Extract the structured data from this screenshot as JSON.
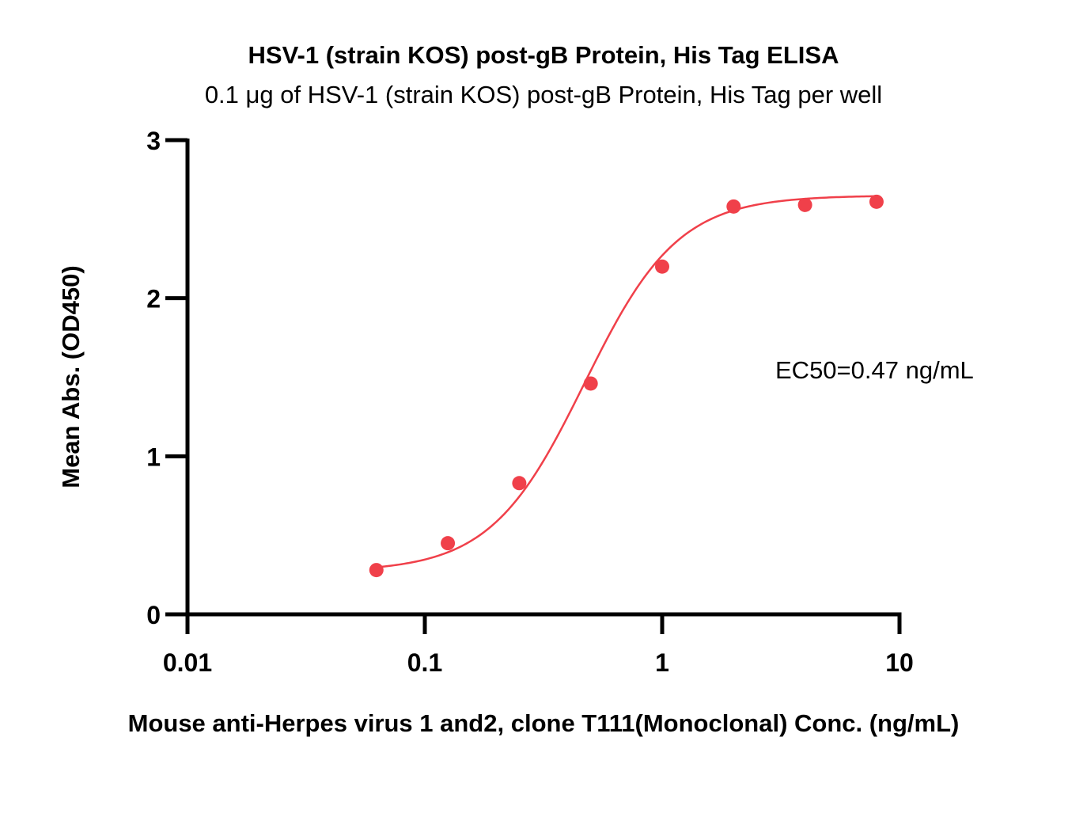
{
  "chart_data": {
    "type": "scatter",
    "title": "HSV-1 (strain KOS) post-gB Protein, His Tag ELISA",
    "subtitle": "0.1 μg of HSV-1 (strain KOS) post-gB Protein, His Tag per well",
    "xlabel": "Mouse anti-Herpes virus 1 and2, clone T111(Monoclonal) Conc. (ng/mL)",
    "ylabel": "Mean Abs. (OD450)",
    "x_scale": "log",
    "xlim": [
      0.01,
      10
    ],
    "ylim": [
      0,
      3
    ],
    "x_ticks": [
      "0.01",
      "0.1",
      "1",
      "10"
    ],
    "y_ticks": [
      "0",
      "1",
      "2",
      "3"
    ],
    "grid": false,
    "color": "#f0404a",
    "annotation": "EC50=0.47 ng/mL",
    "ec50": 0.47,
    "fit": {
      "model": "4PL",
      "bottom": 0.27,
      "top": 2.65,
      "ec50": 0.47,
      "hill": 2.2
    },
    "series": [
      {
        "x": [
          0.0625,
          0.125,
          0.25,
          0.5,
          1,
          2,
          4,
          8
        ],
        "y": [
          0.28,
          0.45,
          0.83,
          1.46,
          2.2,
          2.58,
          2.59,
          2.61
        ]
      }
    ]
  }
}
